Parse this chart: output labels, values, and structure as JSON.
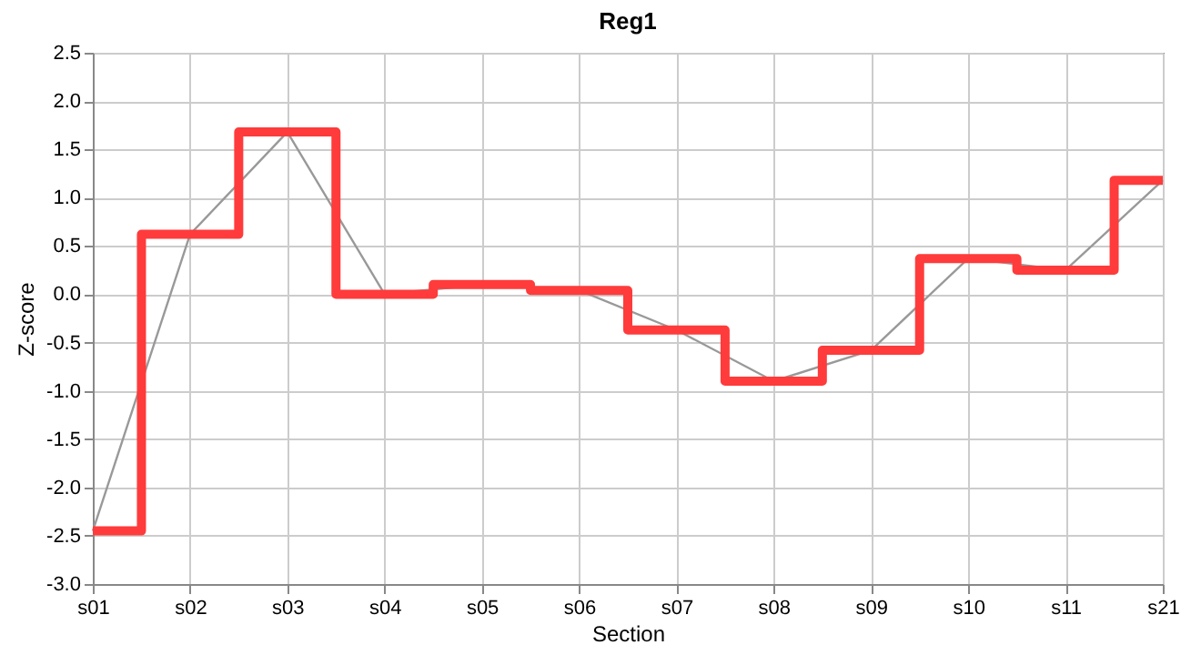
{
  "chart_data": {
    "type": "step",
    "title": "Reg1",
    "xlabel": "Section",
    "ylabel": "Z-score",
    "categories": [
      "s01",
      "s02",
      "s03",
      "s04",
      "s05",
      "s06",
      "s07",
      "s08",
      "s09",
      "s10",
      "s11",
      "s21"
    ],
    "series": [
      {
        "type": "line",
        "color": "#999999",
        "values": [
          -2.45,
          0.62,
          1.68,
          0.0,
          0.1,
          0.04,
          -0.37,
          -0.9,
          -0.58,
          0.37,
          0.25,
          1.18
        ]
      },
      {
        "color": "#ff3b3b",
        "values": [
          -2.45,
          0.62,
          1.68,
          0.0,
          0.1,
          0.04,
          -0.37,
          -0.9,
          -0.58,
          0.37,
          0.25,
          1.18
        ]
      }
    ],
    "ylim": [
      -3.0,
      2.5
    ],
    "yticks": [
      {
        "value": -3,
        "label": "-3.0"
      },
      {
        "value": -2.5,
        "label": "-2.5"
      },
      {
        "value": -2,
        "label": "-2.0"
      },
      {
        "value": -1.5,
        "label": "-1.5"
      },
      {
        "value": -1,
        "label": "-1.0"
      },
      {
        "value": -0.5,
        "label": "-0.5"
      },
      {
        "value": 0,
        "label": "0.0"
      },
      {
        "value": 0.5,
        "label": "0.5"
      },
      {
        "value": 1,
        "label": "1.0"
      },
      {
        "value": 1.5,
        "label": "1.5"
      },
      {
        "value": 2,
        "label": "2.0"
      },
      {
        "value": 2.5,
        "label": "2.5"
      }
    ],
    "grid": true,
    "legend": false
  }
}
